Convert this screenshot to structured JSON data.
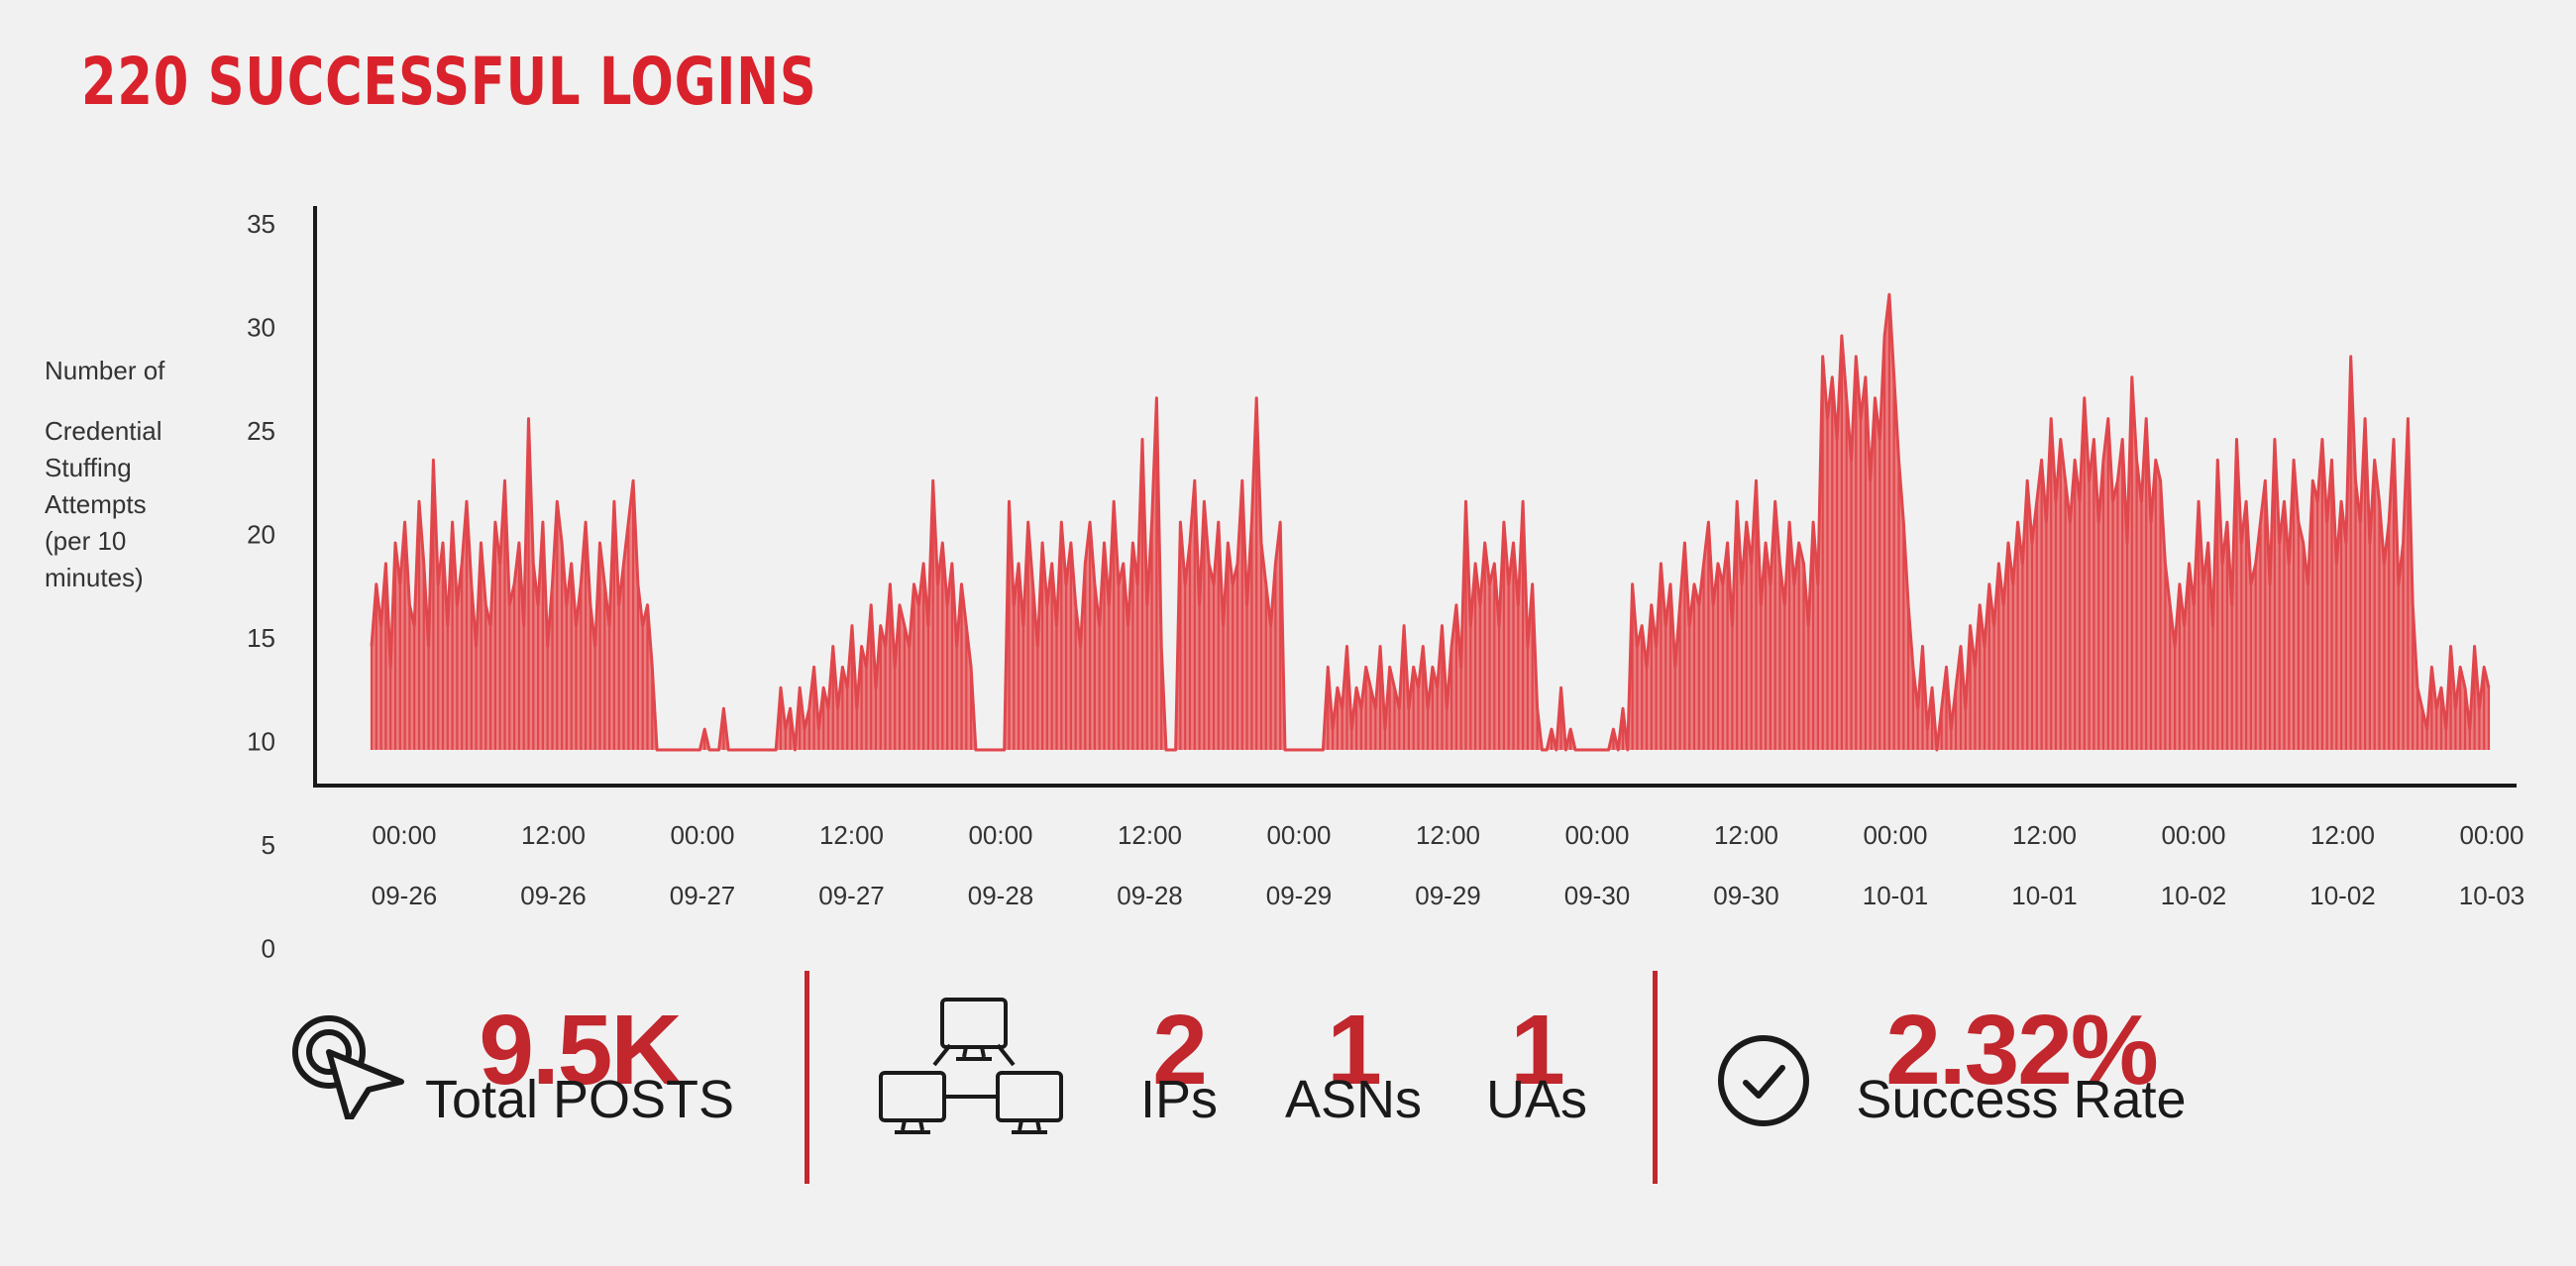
{
  "title": "220 SUCCESSFUL LOGINS",
  "y_axis_label_lines": [
    "Number of",
    "Credential",
    "Stuffing",
    "Attempts",
    "(per 10",
    "minutes)"
  ],
  "chart_data": {
    "type": "area",
    "title": "220 SUCCESSFUL LOGINS",
    "ylabel": "Number of Credential Stuffing Attempts (per 10 minutes)",
    "xlabel": "",
    "color": "#e0474c",
    "fill": "#e96a6c",
    "ylim": [
      0,
      35
    ],
    "y_ticks": [
      35,
      30,
      25,
      20,
      15,
      10,
      5,
      0
    ],
    "x_ticks": [
      {
        "time": "00:00",
        "date": "09-26"
      },
      {
        "time": "12:00",
        "date": "09-26"
      },
      {
        "time": "00:00",
        "date": "09-27"
      },
      {
        "time": "12:00",
        "date": "09-27"
      },
      {
        "time": "00:00",
        "date": "09-28"
      },
      {
        "time": "12:00",
        "date": "09-28"
      },
      {
        "time": "00:00",
        "date": "09-29"
      },
      {
        "time": "12:00",
        "date": "09-29"
      },
      {
        "time": "00:00",
        "date": "09-30"
      },
      {
        "time": "12:00",
        "date": "09-30"
      },
      {
        "time": "00:00",
        "date": "10-01"
      },
      {
        "time": "12:00",
        "date": "10-01"
      },
      {
        "time": "00:00",
        "date": "10-02"
      },
      {
        "time": "12:00",
        "date": "10-02"
      },
      {
        "time": "00:00",
        "date": "10-03"
      }
    ],
    "series": [
      {
        "x_start": "2019-09-25 22:00",
        "interval_minutes": 10,
        "values": [
          15,
          18,
          16,
          19,
          14,
          20,
          18,
          21,
          17,
          16,
          22,
          19,
          15,
          24,
          18,
          20,
          16,
          21,
          17,
          19,
          22,
          18,
          15,
          20,
          17,
          16,
          21,
          19,
          23,
          17,
          18,
          20,
          16,
          26,
          19,
          17,
          21,
          15,
          18,
          22,
          20,
          17,
          19,
          16,
          18,
          21,
          17,
          15,
          20,
          18,
          16,
          22,
          17,
          19,
          21,
          23,
          18,
          16,
          17,
          14,
          10,
          10,
          10,
          10,
          10,
          10,
          10,
          10,
          10,
          10,
          11,
          10,
          10,
          10,
          12,
          10,
          10,
          10,
          10,
          10,
          10,
          10,
          10,
          10,
          10,
          10,
          13,
          11,
          12,
          10,
          13,
          11,
          12,
          14,
          11,
          13,
          12,
          15,
          12,
          14,
          13,
          16,
          12,
          15,
          14,
          17,
          13,
          16,
          15,
          18,
          14,
          17,
          16,
          15,
          18,
          17,
          19,
          16,
          23,
          18,
          20,
          17,
          19,
          15,
          18,
          16,
          14,
          10,
          10,
          10,
          10,
          10,
          10,
          10,
          22,
          17,
          19,
          16,
          21,
          18,
          15,
          20,
          17,
          19,
          16,
          21,
          18,
          20,
          17,
          15,
          19,
          21,
          18,
          16,
          20,
          17,
          22,
          18,
          19,
          16,
          20,
          18,
          25,
          17,
          21,
          27,
          15,
          10,
          10,
          10,
          21,
          18,
          20,
          23,
          17,
          22,
          19,
          18,
          21,
          16,
          20,
          18,
          19,
          23,
          17,
          21,
          27,
          20,
          18,
          16,
          19,
          21,
          10,
          10,
          10,
          10,
          10,
          10,
          10,
          10,
          10,
          14,
          11,
          13,
          12,
          15,
          11,
          13,
          12,
          14,
          13,
          12,
          15,
          11,
          14,
          13,
          12,
          16,
          12,
          14,
          13,
          15,
          12,
          14,
          13,
          16,
          12,
          15,
          17,
          14,
          22,
          16,
          19,
          17,
          20,
          18,
          19,
          16,
          21,
          18,
          20,
          17,
          22,
          15,
          18,
          12,
          10,
          10,
          11,
          10,
          13,
          10,
          11,
          10,
          10,
          10,
          10,
          10,
          10,
          10,
          10,
          11,
          10,
          12,
          10,
          18,
          15,
          16,
          14,
          17,
          15,
          19,
          16,
          18,
          14,
          17,
          20,
          16,
          18,
          17,
          19,
          21,
          17,
          19,
          18,
          20,
          16,
          22,
          18,
          21,
          19,
          23,
          17,
          20,
          18,
          22,
          19,
          17,
          21,
          18,
          20,
          19,
          16,
          21,
          18,
          29,
          26,
          28,
          25,
          30,
          27,
          24,
          29,
          26,
          28,
          23,
          27,
          25,
          30,
          32,
          28,
          24,
          21,
          17,
          14,
          12,
          15,
          11,
          13,
          10,
          12,
          14,
          11,
          13,
          15,
          12,
          16,
          14,
          17,
          15,
          18,
          16,
          19,
          17,
          20,
          18,
          21,
          19,
          23,
          20,
          22,
          24,
          21,
          26,
          22,
          25,
          23,
          21,
          24,
          22,
          27,
          23,
          25,
          21,
          24,
          26,
          22,
          23,
          25,
          20,
          28,
          24,
          22,
          26,
          21,
          24,
          23,
          19,
          17,
          15,
          18,
          16,
          19,
          17,
          22,
          18,
          20,
          16,
          24,
          19,
          21,
          17,
          25,
          20,
          22,
          18,
          19,
          21,
          23,
          18,
          25,
          20,
          22,
          19,
          24,
          21,
          20,
          18,
          23,
          22,
          25,
          21,
          24,
          19,
          22,
          20,
          29,
          23,
          21,
          26,
          20,
          24,
          22,
          19,
          21,
          25,
          18,
          20,
          26,
          17,
          13,
          12,
          11,
          14,
          12,
          13,
          11,
          15,
          12,
          14,
          13,
          11,
          15,
          12,
          14,
          13
        ]
      }
    ]
  },
  "stats": {
    "posts": {
      "value": "9.5K",
      "label": "Total POSTS",
      "icon": "cursor-click-icon"
    },
    "network_icon": "network-computers-icon",
    "ips": {
      "value": "2",
      "label": "IPs"
    },
    "asns": {
      "value": "1",
      "label": "ASNs"
    },
    "uas": {
      "value": "1",
      "label": "UAs"
    },
    "success": {
      "value": "2.32%",
      "label": "Success Rate",
      "icon": "check-circle-icon"
    }
  }
}
